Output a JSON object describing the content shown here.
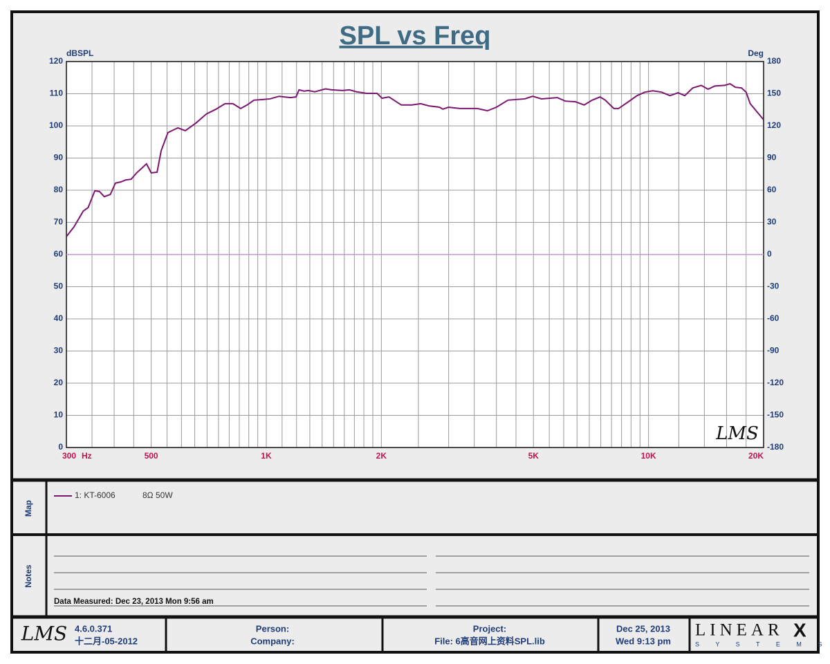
{
  "chart_data": {
    "type": "line",
    "title": "SPL vs Freq",
    "y_label": "dBSPL",
    "y2_label": "Deg",
    "x_unit": "Hz",
    "logo": "LMS",
    "xscale": "log",
    "grid": true,
    "xlim": [
      300,
      20000
    ],
    "xticks": [
      300,
      500,
      {
        "value": 1000,
        "label": "1K"
      },
      {
        "value": 2000,
        "label": "2K"
      },
      {
        "value": 5000,
        "label": "5K"
      },
      {
        "value": 10000,
        "label": "10K"
      },
      {
        "value": 20000,
        "label": "20K"
      }
    ],
    "xgrid": [
      300,
      350,
      400,
      450,
      500,
      550,
      600,
      650,
      700,
      750,
      800,
      850,
      900,
      950,
      1000,
      1100,
      1200,
      1300,
      1400,
      1500,
      1600,
      1700,
      1800,
      1900,
      2000,
      2500,
      3000,
      3500,
      4000,
      4500,
      5000,
      5500,
      6000,
      6500,
      7000,
      7500,
      8000,
      8500,
      9000,
      9500,
      10000,
      12000,
      14000,
      16000,
      18000,
      20000
    ],
    "ylim": [
      0,
      120
    ],
    "yticks": [
      0,
      10,
      20,
      30,
      40,
      50,
      60,
      70,
      80,
      90,
      100,
      110,
      120
    ],
    "y2lim": [
      -180,
      180
    ],
    "y2ticks": [
      -180,
      -150,
      -120,
      -90,
      -60,
      -30,
      0,
      30,
      60,
      90,
      120,
      150,
      180
    ],
    "series": [
      {
        "name": "1: KT-6006",
        "description": "8Ω  50W",
        "color": "#7b1670",
        "x": [
          300,
          314,
          332,
          342,
          356,
          366,
          377,
          391,
          403,
          417,
          429,
          443,
          458,
          471,
          486,
          500,
          518,
          531,
          553,
          587,
          614,
          655,
          697,
          739,
          780,
          818,
          857,
          891,
          928,
          980,
          1023,
          1080,
          1155,
          1196,
          1218,
          1256,
          1289,
          1339,
          1428,
          1484,
          1583,
          1650,
          1722,
          1832,
          1950,
          2008,
          2094,
          2256,
          2402,
          2536,
          2666,
          2838,
          2897,
          2995,
          3212,
          3564,
          3789,
          4000,
          4288,
          4744,
          4978,
          5247,
          5771,
          6060,
          6440,
          6787,
          7121,
          7467,
          7706,
          8115,
          8346,
          8858,
          9330,
          9785,
          10260,
          10810,
          11380,
          11950,
          12440,
          13050,
          13740,
          14310,
          14900,
          15820,
          16340,
          16870,
          17500,
          18000,
          18450,
          20000
        ],
        "values": [
          65.6,
          68.6,
          73.5,
          74.6,
          79.8,
          79.6,
          78,
          78.7,
          82.2,
          82.6,
          83.2,
          83.4,
          85.4,
          86.7,
          88.2,
          85.4,
          85.6,
          92.3,
          97.9,
          99.4,
          98.5,
          100.9,
          103.7,
          105.2,
          106.9,
          106.9,
          105.4,
          106.5,
          108,
          108.2,
          108.4,
          109.2,
          108.8,
          109,
          111.2,
          110.8,
          111,
          110.6,
          111.5,
          111.2,
          111,
          111.2,
          110.6,
          110.1,
          110.1,
          108.6,
          109,
          106.5,
          106.5,
          106.9,
          106.2,
          105.8,
          105.2,
          105.8,
          105.4,
          105.4,
          104.7,
          105.8,
          108,
          108.4,
          109.2,
          108.4,
          108.8,
          107.7,
          107.5,
          106.5,
          108,
          109,
          108,
          105.4,
          105.4,
          107.5,
          109.4,
          110.5,
          110.9,
          110.5,
          109.4,
          110.3,
          109.4,
          111.8,
          112.6,
          111.4,
          112.4,
          112.6,
          113.1,
          112,
          111.8,
          110.5,
          106.9,
          101.9
        ]
      },
      {
        "color": "#c79ad6",
        "axis": "y2",
        "x": [
          300,
          20000
        ],
        "values": [
          0,
          0
        ]
      }
    ]
  },
  "panels": {
    "map_label": "Map",
    "notes_label": "Notes",
    "measured": "Data Measured: Dec 23, 2013  Mon  9:56 am"
  },
  "footer": {
    "logo": "LMS",
    "version": "4.6.0.371",
    "build_date": "十二月-05-2012",
    "person": "Person:",
    "company": "Company:",
    "project": "Project:",
    "file": "File: 6高音网上资料SPL.lib",
    "date": "Dec 25, 2013",
    "time": "Wed  9:13 pm",
    "brand": "LINEAR",
    "brand_x": "X",
    "brand_sub": "S Y S T E M S"
  }
}
